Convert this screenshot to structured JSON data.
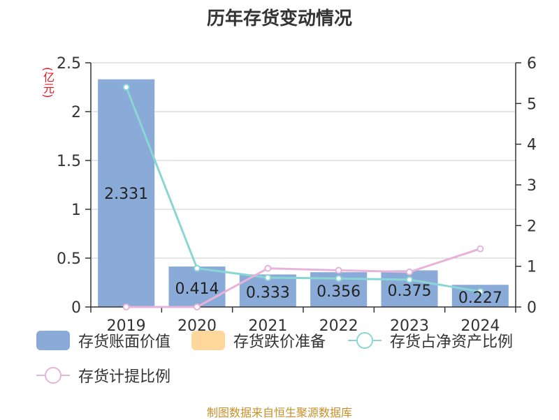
{
  "title": "历年存货变动情况",
  "unit_label": "(亿元)",
  "footer": "制图数据来自恒生聚源数据库",
  "colors": {
    "bar": "#8aabd8",
    "impairment": "#fdd79b",
    "ratio_line": "#8ad6d5",
    "provision_line": "#e8b3d9",
    "axis": "#333333",
    "grid": "#cccccc",
    "footer": "#c8902a",
    "unit": "#e8141e"
  },
  "legend": [
    {
      "label": "存货账面价值",
      "kind": "bar",
      "color": "#8aabd8"
    },
    {
      "label": "存货跌价准备",
      "kind": "bar",
      "color": "#fdd79b"
    },
    {
      "label": "存货占净资产比例",
      "kind": "line",
      "color": "#8ad6d5"
    },
    {
      "label": "存货计提比例",
      "kind": "line",
      "color": "#e8b3d9"
    }
  ],
  "chart_data": {
    "type": "bar",
    "categories": [
      "2019",
      "2020",
      "2021",
      "2022",
      "2023",
      "2024"
    ],
    "left_axis": {
      "min": 0,
      "max": 2.5,
      "ticks": [
        "0",
        "0.5",
        "1",
        "1.5",
        "2",
        "2.5"
      ]
    },
    "right_axis": {
      "min": 0,
      "max": 6,
      "ticks": [
        "0",
        "1",
        "2",
        "3",
        "4",
        "5",
        "6"
      ]
    },
    "grid": true,
    "series": [
      {
        "name": "存货账面价值",
        "type": "bar",
        "axis": "left",
        "values": [
          2.331,
          0.414,
          0.333,
          0.356,
          0.375,
          0.227
        ],
        "labels": [
          "2.331",
          "0.414",
          "0.333",
          "0.356",
          "0.375",
          "0.227"
        ]
      },
      {
        "name": "存货跌价准备",
        "type": "bar",
        "axis": "left",
        "values": [
          0,
          0,
          0,
          0,
          0,
          0
        ]
      },
      {
        "name": "存货占净资产比例",
        "type": "line",
        "axis": "right",
        "values": [
          5.4,
          0.95,
          0.72,
          0.7,
          0.67,
          0.38
        ]
      },
      {
        "name": "存货计提比例",
        "type": "line",
        "axis": "right",
        "values": [
          0.0,
          0.0,
          0.95,
          0.9,
          0.86,
          1.43
        ]
      }
    ]
  }
}
